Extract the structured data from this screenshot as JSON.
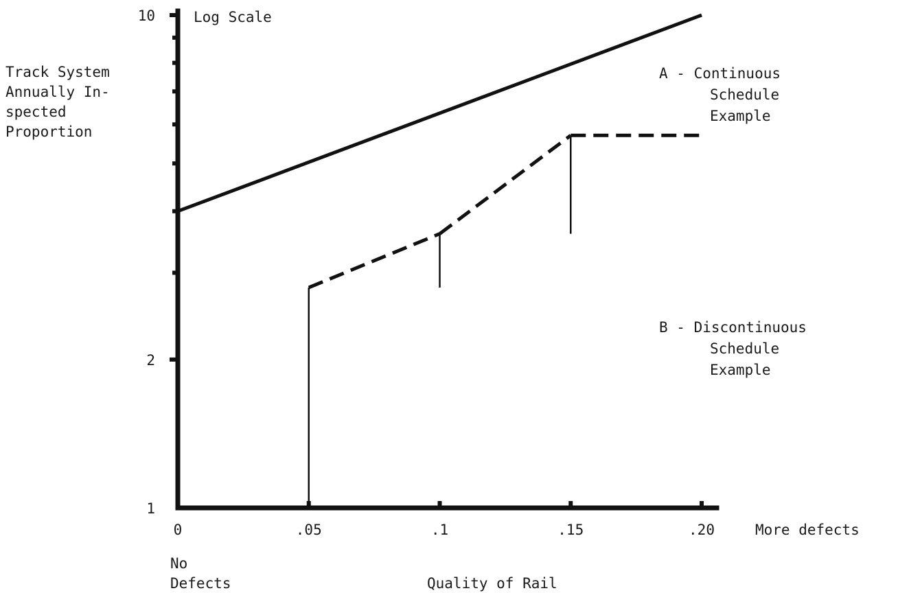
{
  "chart_data": {
    "type": "line",
    "scale_label": "Log Scale",
    "ylabel": [
      "Track System",
      "Annually In-",
      "spected",
      "Proportion"
    ],
    "xlabel": "Quality of Rail",
    "x_ticks": [
      {
        "value": 0,
        "label": "0"
      },
      {
        "value": 0.05,
        "label": ".05"
      },
      {
        "value": 0.1,
        "label": ".1"
      },
      {
        "value": 0.15,
        "label": ".15"
      },
      {
        "value": 0.2,
        "label": ".20"
      }
    ],
    "x_end_label": "More defects",
    "x_start_label": [
      "No",
      "Defects"
    ],
    "y_ticks": [
      {
        "value": 1,
        "label": "1"
      },
      {
        "value": 2,
        "label": "2"
      },
      {
        "value": 10,
        "label": "10"
      }
    ],
    "y_minor_ticks": [
      3,
      4,
      5,
      6,
      7,
      8,
      9
    ],
    "xlim": [
      0,
      0.2
    ],
    "ylim": [
      1,
      10
    ],
    "y_scale": "log",
    "grid": false,
    "series": [
      {
        "name": "A",
        "label": [
          "A - Continuous",
          "Schedule",
          "Example"
        ],
        "style": "solid",
        "x": [
          0,
          0.2
        ],
        "y": [
          4,
          10
        ]
      },
      {
        "name": "B",
        "label": [
          "B - Discontinuous",
          "Schedule",
          "Example"
        ],
        "style": "dashed-step",
        "x": [
          0.05,
          0.1,
          0.15,
          0.2
        ],
        "y": [
          2.8,
          3.6,
          5.7,
          5.7
        ],
        "step_start_y": 1
      }
    ]
  }
}
